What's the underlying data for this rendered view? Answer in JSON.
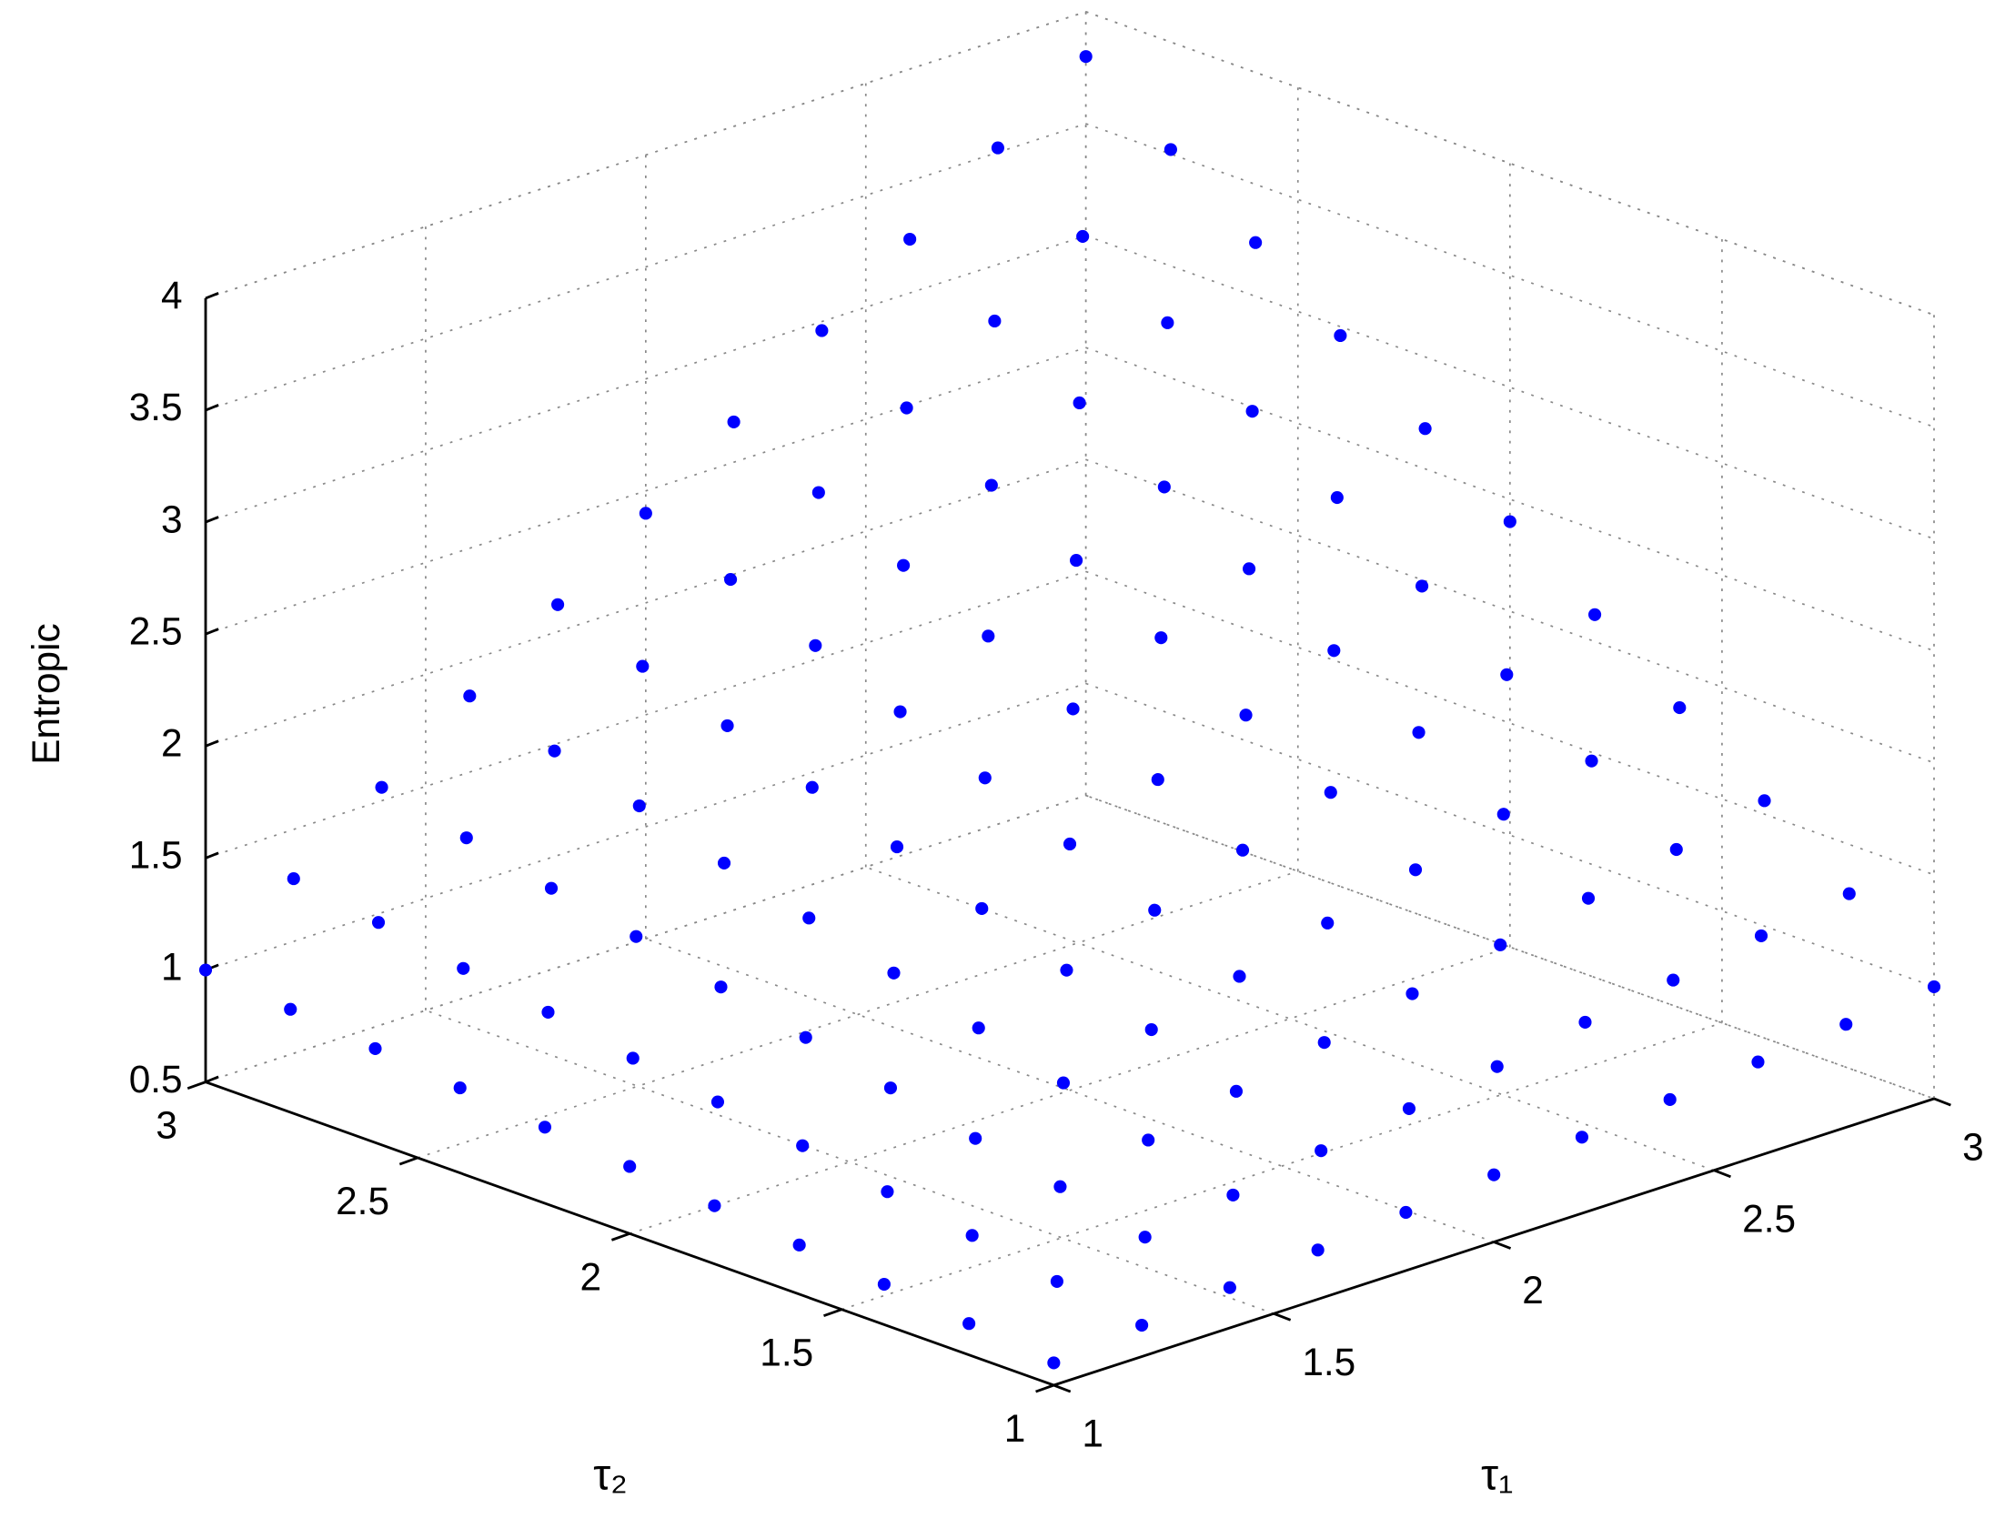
{
  "chart_data": {
    "type": "scatter3d",
    "xlabel": "τ₁",
    "ylabel": "τ₂",
    "zlabel": "Entropic",
    "x": [
      1,
      1.2,
      1.4,
      1.6,
      1.8,
      2,
      2.2,
      2.4,
      2.6,
      2.8,
      3
    ],
    "y": [
      1,
      1.2,
      1.4,
      1.6,
      1.8,
      2,
      2.2,
      2.4,
      2.6,
      2.8,
      3
    ],
    "z": [
      [
        0.6,
        0.64,
        0.68,
        0.72,
        0.76,
        0.8,
        0.84,
        0.88,
        0.92,
        0.96,
        1.0
      ],
      [
        0.64,
        0.7,
        0.77,
        0.83,
        0.9,
        0.96,
        1.02,
        1.09,
        1.15,
        1.22,
        1.28
      ],
      [
        0.68,
        0.77,
        0.86,
        0.94,
        1.03,
        1.12,
        1.21,
        1.3,
        1.38,
        1.47,
        1.56
      ],
      [
        0.72,
        0.83,
        0.94,
        1.06,
        1.17,
        1.28,
        1.39,
        1.5,
        1.62,
        1.73,
        1.84
      ],
      [
        0.76,
        0.9,
        1.03,
        1.17,
        1.3,
        1.44,
        1.58,
        1.71,
        1.85,
        1.98,
        2.12
      ],
      [
        0.8,
        0.96,
        1.12,
        1.28,
        1.44,
        1.6,
        1.76,
        1.92,
        2.08,
        2.24,
        2.4
      ],
      [
        0.84,
        1.02,
        1.21,
        1.39,
        1.58,
        1.76,
        1.94,
        2.13,
        2.31,
        2.5,
        2.68
      ],
      [
        0.88,
        1.09,
        1.3,
        1.5,
        1.71,
        1.92,
        2.13,
        2.34,
        2.54,
        2.75,
        2.96
      ],
      [
        0.92,
        1.15,
        1.38,
        1.62,
        1.85,
        2.08,
        2.31,
        2.54,
        2.78,
        3.01,
        3.24
      ],
      [
        0.96,
        1.22,
        1.47,
        1.73,
        1.98,
        2.24,
        2.5,
        2.75,
        3.01,
        3.26,
        3.52
      ],
      [
        1.0,
        1.28,
        1.56,
        1.84,
        2.12,
        2.4,
        2.68,
        2.96,
        3.24,
        3.52,
        3.8
      ]
    ],
    "xlim": [
      1,
      3
    ],
    "ylim": [
      1,
      3
    ],
    "zlim": [
      0.5,
      4
    ],
    "xticks": [
      1,
      1.5,
      2,
      2.5,
      3
    ],
    "yticks": [
      1,
      1.5,
      2,
      2.5,
      3
    ],
    "zticks": [
      0.5,
      1,
      1.5,
      2,
      2.5,
      3,
      3.5,
      4
    ],
    "color": "#0000ff",
    "grid": true
  }
}
